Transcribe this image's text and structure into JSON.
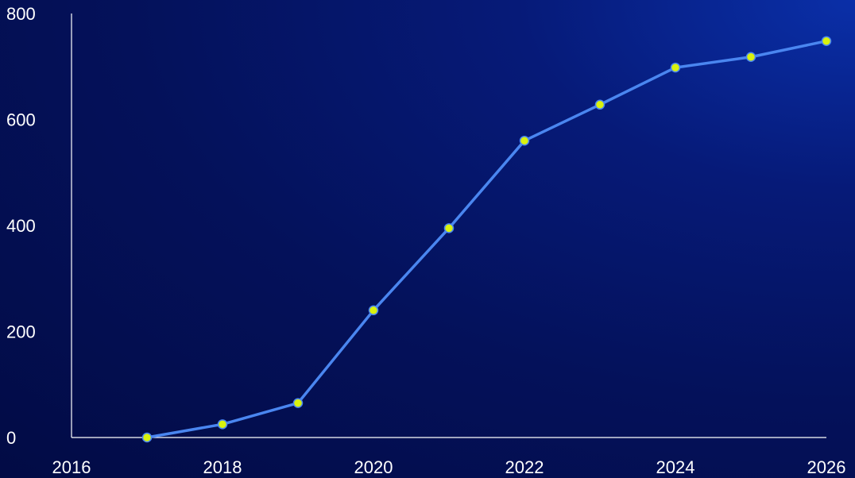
{
  "chart_data": {
    "type": "line",
    "x": [
      2017,
      2018,
      2019,
      2020,
      2021,
      2022,
      2023,
      2024,
      2025,
      2026
    ],
    "series": [
      {
        "values": [
          0,
          25,
          65,
          240,
          395,
          560,
          628,
          698,
          718,
          748
        ]
      }
    ],
    "xlim": [
      2016,
      2026
    ],
    "ylim": [
      0,
      800
    ],
    "xticks": [
      "2016",
      "2018",
      "2020",
      "2022",
      "2024",
      "2026"
    ],
    "yticks": [
      "0",
      "200",
      "400",
      "600",
      "800"
    ],
    "title": "",
    "xlabel": "",
    "ylabel": "",
    "grid": false,
    "colors": {
      "line": "#4a86f0",
      "marker_fill": "#d9f20e",
      "axis": "#ffffff",
      "text": "#ffffff"
    }
  }
}
